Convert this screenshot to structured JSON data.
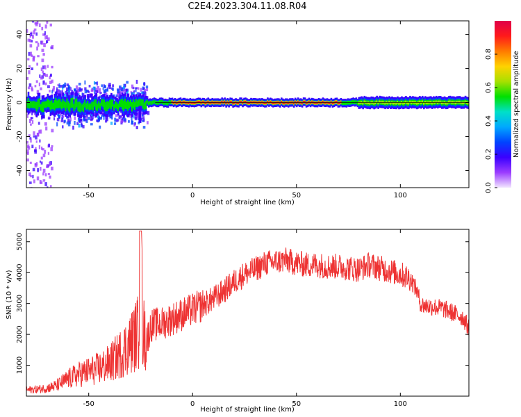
{
  "figure_title": "C2E4.2023.304.11.08.R04",
  "chart_data": [
    {
      "type": "heatmap",
      "xlabel": "Height of straight line (km)",
      "ylabel": "Frequency (Hz)",
      "xlim": [
        -80,
        133
      ],
      "ylim": [
        -50,
        48
      ],
      "xticks": [
        -50,
        0,
        50,
        100
      ],
      "yticks": [
        -40,
        -20,
        0,
        20,
        40
      ],
      "colorbar": {
        "label": "Normalized spectral amplitude",
        "range": [
          0.0,
          1.0
        ],
        "ticks": [
          0.0,
          0.2,
          0.4,
          0.6,
          0.8
        ],
        "colormap": [
          "#f2e6ff",
          "#9b3cff",
          "#3a00ff",
          "#0044ff",
          "#00a8ff",
          "#00e0c8",
          "#00e000",
          "#a8e000",
          "#ffd200",
          "#ff7a00",
          "#ff1a1a",
          "#e0004a"
        ]
      },
      "band": {
        "center_hz": 0,
        "strong_x_range": [
          -10,
          72
        ],
        "noisy_x_range": [
          -80,
          -22
        ],
        "wide_noise_x_range": [
          -80,
          -68
        ]
      }
    },
    {
      "type": "line",
      "xlabel": "Height of straight line (km)",
      "ylabel": "SNR (10 * v/v)",
      "xlim": [
        -80,
        133
      ],
      "ylim": [
        0,
        5400
      ],
      "xticks": [
        -50,
        0,
        50,
        100
      ],
      "yticks": [
        1000,
        2000,
        3000,
        4000,
        5000
      ],
      "color": "#ee3333",
      "series": [
        {
          "name": "SNR",
          "x": [
            -80,
            -75,
            -70,
            -65,
            -60,
            -55,
            -50,
            -45,
            -40,
            -35,
            -30,
            -26,
            -25,
            -24,
            -22,
            -20,
            -15,
            -10,
            -5,
            0,
            5,
            10,
            15,
            20,
            25,
            30,
            35,
            40,
            45,
            50,
            55,
            60,
            65,
            70,
            75,
            80,
            85,
            90,
            95,
            100,
            105,
            108,
            110,
            115,
            120,
            125,
            130,
            133
          ],
          "y": [
            200,
            220,
            260,
            350,
            550,
            700,
            800,
            900,
            1050,
            1350,
            1700,
            2100,
            5350,
            2100,
            1800,
            2300,
            2350,
            2500,
            2650,
            2800,
            2950,
            3150,
            3400,
            3700,
            3950,
            4100,
            4300,
            4350,
            4400,
            4300,
            4250,
            4250,
            4200,
            4200,
            4150,
            4100,
            4250,
            4150,
            4050,
            3950,
            3800,
            3400,
            2950,
            2900,
            2850,
            2700,
            2550,
            2200
          ]
        }
      ]
    }
  ]
}
